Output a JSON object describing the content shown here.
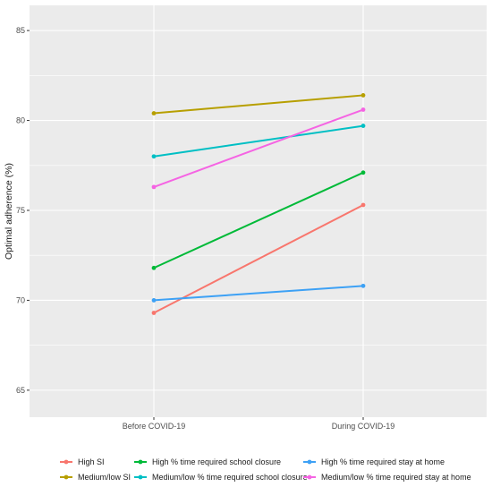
{
  "chart_data": {
    "type": "line",
    "title": "",
    "xlabel": "",
    "ylabel": "Optimal adherence (%)",
    "categories": [
      "Before COVID-19",
      "During COVID-19"
    ],
    "ylim": [
      63.5,
      86.4
    ],
    "yticks": [
      65,
      70,
      75,
      80,
      85
    ],
    "grid": true,
    "legend_position": "bottom",
    "series": [
      {
        "name": "High SI",
        "color": "#F8766D",
        "values": [
          69.3,
          75.3
        ]
      },
      {
        "name": "Medium/low SI",
        "color": "#B79F00",
        "values": [
          80.4,
          81.4
        ]
      },
      {
        "name": "High % time required school closure",
        "color": "#00BA38",
        "values": [
          71.8,
          77.1
        ]
      },
      {
        "name": "Medium/low % time required school closure",
        "color": "#00BFC4",
        "values": [
          78.0,
          79.7
        ]
      },
      {
        "name": "High % time required stay at home",
        "color": "#3DA1F5",
        "values": [
          70.0,
          70.8
        ]
      },
      {
        "name": "Medium/low % time required stay at home",
        "color": "#F564E3",
        "values": [
          76.3,
          80.6
        ]
      }
    ]
  }
}
